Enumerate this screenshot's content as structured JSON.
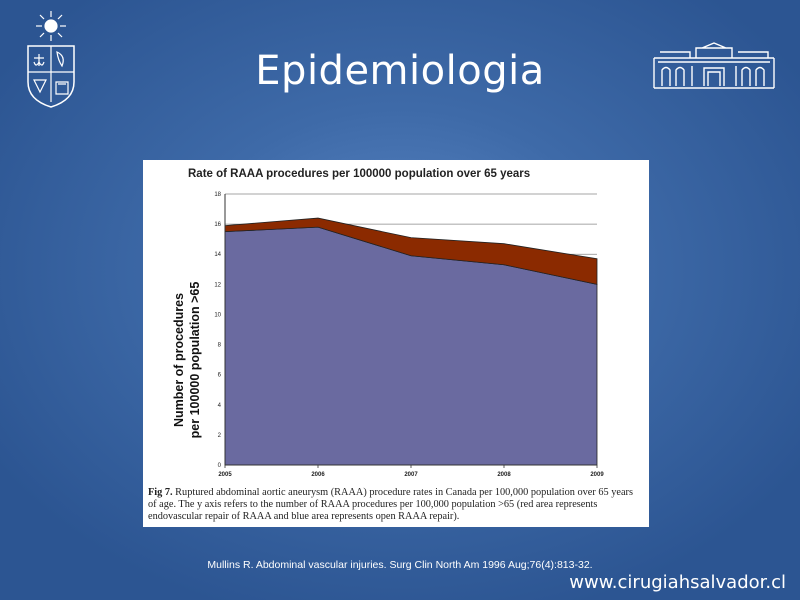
{
  "slide": {
    "title": "Epidemiologia",
    "reference": "Mullins R. Abdominal vascular injuries. Surg Clin North Am 1996 Aug;76(4):813-32.",
    "website": "www.cirugiahsalvador.cl"
  },
  "colors": {
    "background": "#3e6aa8",
    "open_repair_area": "#6a6aa0",
    "endovascular_area": "#8b2a00"
  },
  "caption": {
    "label": "Fig 7.",
    "text": " Ruptured abdominal aortic aneurysm (RAAA) procedure rates in Canada per 100,000 population over 65 years of age. The y axis refers to the number of RAAA procedures per 100,000 population >65 (red area represents endovascular repair of RAAA and blue area represents open RAAA repair)."
  },
  "chart_data": {
    "type": "area",
    "title": "Rate of RAAA procedures per 100000 population over 65 years",
    "xlabel": "",
    "ylabel": "Number of procedures per 100000 population >65",
    "x": [
      "2005",
      "2006",
      "2007",
      "2008",
      "2009"
    ],
    "ylim": [
      0,
      18
    ],
    "yticks": [
      "0",
      "2",
      "4",
      "6",
      "8",
      "10",
      "12",
      "14",
      "16",
      "18"
    ],
    "stacked": true,
    "series": [
      {
        "key": "open",
        "color": "#6a6aa0",
        "values": [
          15.5,
          15.8,
          13.9,
          13.3,
          12.0
        ]
      },
      {
        "key": "endovascular",
        "color": "#8b2a00",
        "values": [
          0.4,
          0.6,
          1.2,
          1.4,
          1.7
        ]
      }
    ],
    "grid": true,
    "legend": "none"
  }
}
